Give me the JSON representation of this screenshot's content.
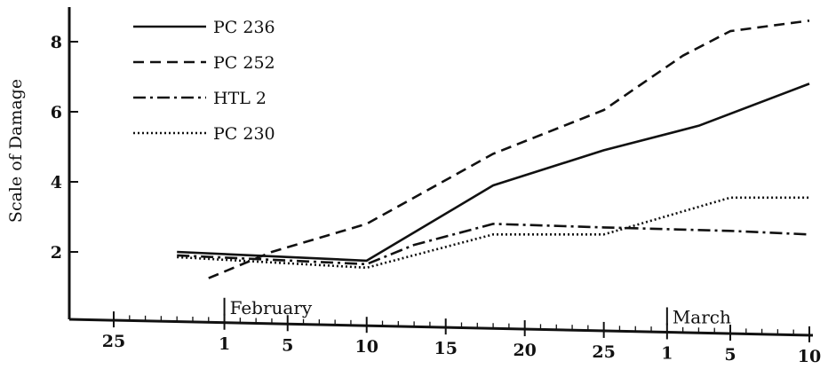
{
  "chart_data": {
    "type": "line",
    "title": "",
    "xlabel": "",
    "ylabel": "Scale of Damage",
    "ylim": [
      0,
      9
    ],
    "yticks": [
      2,
      4,
      6,
      8
    ],
    "grid": false,
    "legend_position": "top-left",
    "x_ticks": [
      {
        "date": "Jan 25",
        "label": "25"
      },
      {
        "date": "Feb 1",
        "label": "1"
      },
      {
        "date": "Feb 5",
        "label": "5"
      },
      {
        "date": "Feb 10",
        "label": "10"
      },
      {
        "date": "Feb 15",
        "label": "15"
      },
      {
        "date": "Feb 20",
        "label": "20"
      },
      {
        "date": "Feb 25",
        "label": "25"
      },
      {
        "date": "Mar 1",
        "label": "1"
      },
      {
        "date": "Mar 5",
        "label": "5"
      },
      {
        "date": "Mar 10",
        "label": "10"
      }
    ],
    "month_labels": [
      {
        "label": "February",
        "date": "Feb 1"
      },
      {
        "label": "March",
        "date": "Mar 1"
      }
    ],
    "series": [
      {
        "name": "PC 236",
        "style": "solid",
        "points": [
          {
            "x": "Jan 29",
            "y": 2.0
          },
          {
            "x": "Feb 10",
            "y": 1.75
          },
          {
            "x": "Feb 18",
            "y": 3.9
          },
          {
            "x": "Feb 25",
            "y": 4.9
          },
          {
            "x": "Mar 3",
            "y": 5.6
          },
          {
            "x": "Mar 10",
            "y": 6.8
          }
        ]
      },
      {
        "name": "PC 252",
        "style": "dashed",
        "points": [
          {
            "x": "Jan 31",
            "y": 1.25
          },
          {
            "x": "Feb 4",
            "y": 2.0
          },
          {
            "x": "Feb 10",
            "y": 2.8
          },
          {
            "x": "Feb 18",
            "y": 4.8
          },
          {
            "x": "Feb 25",
            "y": 6.05
          },
          {
            "x": "Mar 2",
            "y": 7.6
          },
          {
            "x": "Mar 5",
            "y": 8.3
          },
          {
            "x": "Mar 10",
            "y": 8.6
          }
        ]
      },
      {
        "name": "HTL 2",
        "style": "dashdot",
        "points": [
          {
            "x": "Jan 29",
            "y": 1.9
          },
          {
            "x": "Feb 10",
            "y": 1.65
          },
          {
            "x": "Feb 13",
            "y": 2.2
          },
          {
            "x": "Feb 18",
            "y": 2.8
          },
          {
            "x": "Feb 25",
            "y": 2.7
          },
          {
            "x": "Mar 5",
            "y": 2.6
          },
          {
            "x": "Mar 10",
            "y": 2.5
          }
        ]
      },
      {
        "name": "PC 230",
        "style": "dotted",
        "points": [
          {
            "x": "Jan 29",
            "y": 1.85
          },
          {
            "x": "Feb 10",
            "y": 1.55
          },
          {
            "x": "Feb 18",
            "y": 2.5
          },
          {
            "x": "Feb 25",
            "y": 2.5
          },
          {
            "x": "Mar 5",
            "y": 3.55
          },
          {
            "x": "Mar 10",
            "y": 3.55
          }
        ]
      }
    ]
  }
}
